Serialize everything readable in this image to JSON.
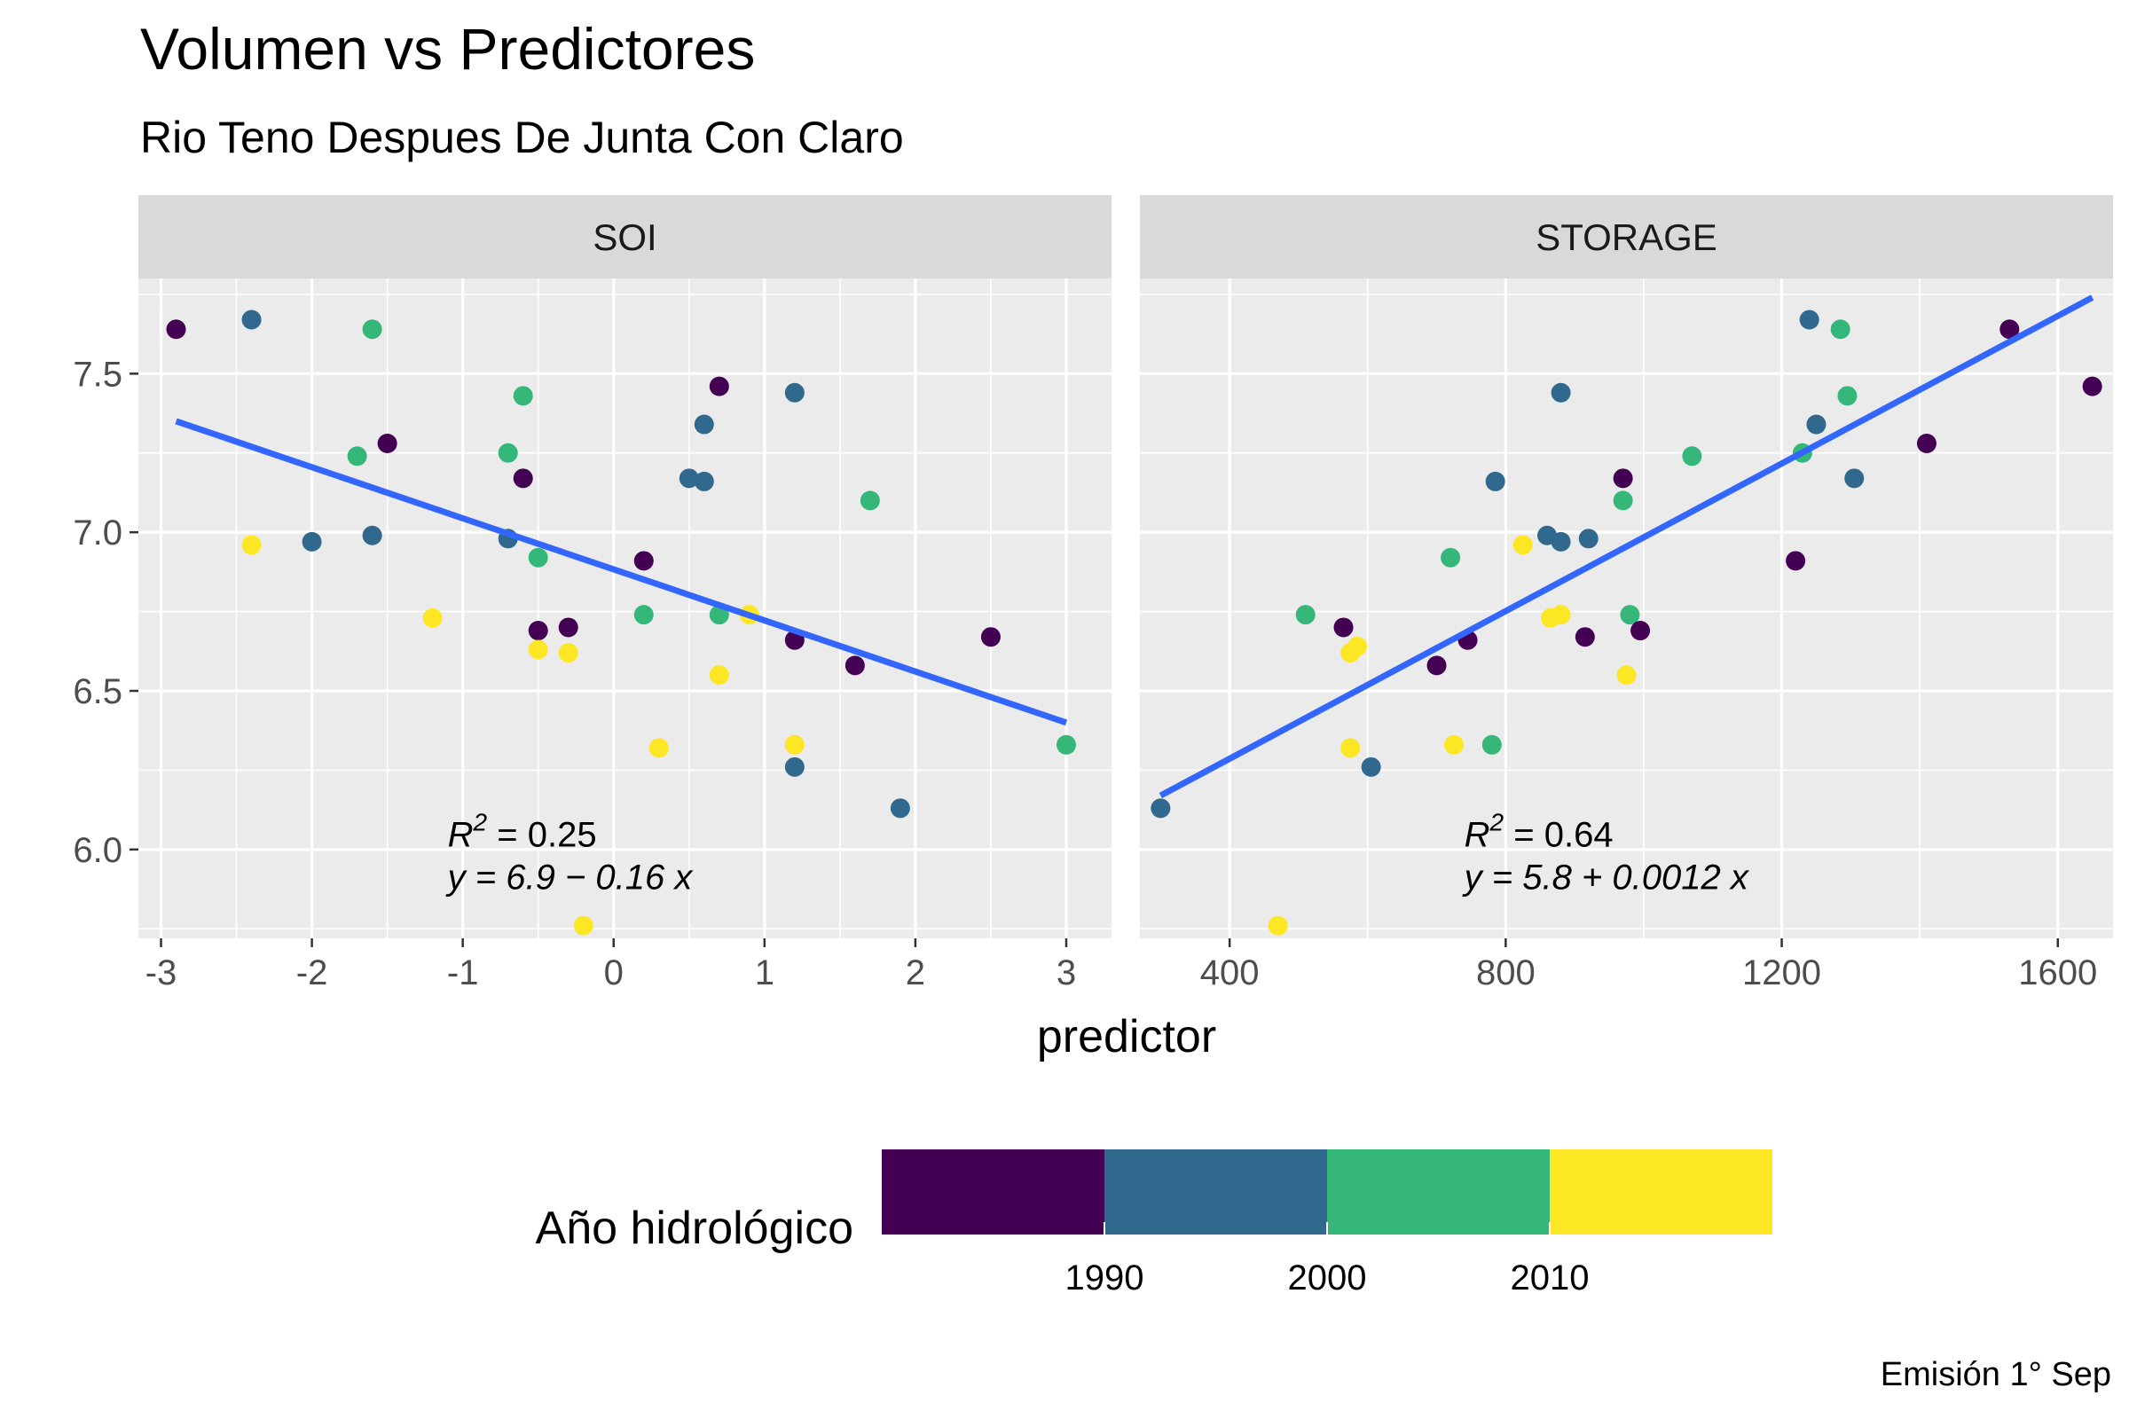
{
  "chart_data": {
    "type": "scatter",
    "title": "Volumen vs Predictores",
    "subtitle": "Rio Teno Despues De Junta Con Claro",
    "xlabel": "predictor",
    "ylabel": "",
    "caption": "Emisión 1° Sep",
    "grid": true,
    "y_ticks": [
      "6.0",
      "6.5",
      "7.0",
      "7.5"
    ],
    "ylim": [
      5.72,
      7.8
    ],
    "trend_color": "#3366FF",
    "panels": [
      {
        "strip": "SOI",
        "xlim": [
          -3.15,
          3.3
        ],
        "x_ticks": [
          "-3",
          "-2",
          "-1",
          "0",
          "1",
          "2",
          "3"
        ],
        "x_tick_values": [
          -3,
          -2,
          -1,
          0,
          1,
          2,
          3
        ],
        "trend": {
          "x": [
            -2.9,
            3.0
          ],
          "y": [
            7.35,
            6.4
          ]
        },
        "r2_prefix": "R",
        "r2_sup": "2",
        "r2_text": " = 0.25",
        "eq_text": "y = 6.9 − 0.16 x",
        "annot_at": [
          -1.1,
          6.06
        ],
        "points": [
          {
            "x": -2.9,
            "y": 7.64,
            "year": 1985
          },
          {
            "x": -2.4,
            "y": 7.67,
            "year": 1994
          },
          {
            "x": -1.6,
            "y": 7.64,
            "year": 2003
          },
          {
            "x": -1.7,
            "y": 7.24,
            "year": 2004
          },
          {
            "x": -1.5,
            "y": 7.28,
            "year": 1987
          },
          {
            "x": -2.4,
            "y": 6.96,
            "year": 2012
          },
          {
            "x": -2.0,
            "y": 6.97,
            "year": 1995
          },
          {
            "x": -1.6,
            "y": 6.99,
            "year": 1993
          },
          {
            "x": -0.6,
            "y": 7.43,
            "year": 2002
          },
          {
            "x": -0.7,
            "y": 7.25,
            "year": 2005
          },
          {
            "x": -0.6,
            "y": 7.17,
            "year": 1986
          },
          {
            "x": -0.7,
            "y": 6.98,
            "year": 1996
          },
          {
            "x": -0.5,
            "y": 6.92,
            "year": 2001
          },
          {
            "x": -1.2,
            "y": 6.73,
            "year": 2013
          },
          {
            "x": -0.5,
            "y": 6.69,
            "year": 1988
          },
          {
            "x": -0.3,
            "y": 6.7,
            "year": 1989
          },
          {
            "x": -0.5,
            "y": 6.63,
            "year": 2014
          },
          {
            "x": -0.3,
            "y": 6.62,
            "year": 2011
          },
          {
            "x": 0.2,
            "y": 6.91,
            "year": 1988
          },
          {
            "x": 0.2,
            "y": 6.74,
            "year": 2003
          },
          {
            "x": 0.7,
            "y": 7.46,
            "year": 1986
          },
          {
            "x": 0.6,
            "y": 7.34,
            "year": 1996
          },
          {
            "x": 0.5,
            "y": 7.17,
            "year": 1995
          },
          {
            "x": 0.6,
            "y": 7.16,
            "year": 1994
          },
          {
            "x": 0.7,
            "y": 6.74,
            "year": 2004
          },
          {
            "x": 0.9,
            "y": 6.74,
            "year": 2012
          },
          {
            "x": 0.7,
            "y": 6.55,
            "year": 2013
          },
          {
            "x": 1.2,
            "y": 7.44,
            "year": 1995
          },
          {
            "x": 1.7,
            "y": 7.1,
            "year": 2005
          },
          {
            "x": 1.2,
            "y": 6.66,
            "year": 1987
          },
          {
            "x": 1.6,
            "y": 6.58,
            "year": 1985
          },
          {
            "x": 2.5,
            "y": 6.67,
            "year": 1988
          },
          {
            "x": 1.2,
            "y": 6.33,
            "year": 2014
          },
          {
            "x": 0.3,
            "y": 6.32,
            "year": 2011
          },
          {
            "x": 1.2,
            "y": 6.26,
            "year": 1994
          },
          {
            "x": 1.9,
            "y": 6.13,
            "year": 1996
          },
          {
            "x": 3.0,
            "y": 6.33,
            "year": 2004
          },
          {
            "x": -0.2,
            "y": 5.76,
            "year": 2015
          }
        ]
      },
      {
        "strip": "STORAGE",
        "xlim": [
          270,
          1680
        ],
        "x_ticks": [
          "400",
          "800",
          "1200",
          "1600"
        ],
        "x_tick_values": [
          400,
          800,
          1200,
          1600
        ],
        "trend": {
          "x": [
            300,
            1650
          ],
          "y": [
            6.17,
            7.74
          ]
        },
        "r2_prefix": "R",
        "r2_sup": "2",
        "r2_text": " = 0.64",
        "eq_text": "y = 5.8 + 0.0012 x",
        "annot_at": [
          740,
          6.06
        ],
        "points": [
          {
            "x": 300,
            "y": 6.13,
            "year": 1996
          },
          {
            "x": 470,
            "y": 5.76,
            "year": 2015
          },
          {
            "x": 510,
            "y": 6.74,
            "year": 2004
          },
          {
            "x": 565,
            "y": 6.7,
            "year": 1988
          },
          {
            "x": 575,
            "y": 6.62,
            "year": 2011
          },
          {
            "x": 585,
            "y": 6.64,
            "year": 2014
          },
          {
            "x": 575,
            "y": 6.32,
            "year": 2013
          },
          {
            "x": 605,
            "y": 6.26,
            "year": 1994
          },
          {
            "x": 700,
            "y": 6.58,
            "year": 1985
          },
          {
            "x": 720,
            "y": 6.92,
            "year": 2001
          },
          {
            "x": 745,
            "y": 6.66,
            "year": 1987
          },
          {
            "x": 725,
            "y": 6.33,
            "year": 2012
          },
          {
            "x": 780,
            "y": 6.33,
            "year": 2004
          },
          {
            "x": 785,
            "y": 7.16,
            "year": 1994
          },
          {
            "x": 825,
            "y": 6.96,
            "year": 2012
          },
          {
            "x": 860,
            "y": 6.99,
            "year": 1993
          },
          {
            "x": 880,
            "y": 6.97,
            "year": 1995
          },
          {
            "x": 865,
            "y": 6.73,
            "year": 2013
          },
          {
            "x": 880,
            "y": 6.74,
            "year": 2014
          },
          {
            "x": 880,
            "y": 7.44,
            "year": 1995
          },
          {
            "x": 920,
            "y": 6.98,
            "year": 1996
          },
          {
            "x": 915,
            "y": 6.67,
            "year": 1988
          },
          {
            "x": 970,
            "y": 7.17,
            "year": 1986
          },
          {
            "x": 970,
            "y": 7.1,
            "year": 2005
          },
          {
            "x": 980,
            "y": 6.74,
            "year": 2003
          },
          {
            "x": 975,
            "y": 6.55,
            "year": 2013
          },
          {
            "x": 995,
            "y": 6.69,
            "year": 1989
          },
          {
            "x": 1070,
            "y": 7.24,
            "year": 2004
          },
          {
            "x": 1220,
            "y": 6.91,
            "year": 1988
          },
          {
            "x": 1230,
            "y": 7.25,
            "year": 2005
          },
          {
            "x": 1240,
            "y": 7.67,
            "year": 1994
          },
          {
            "x": 1250,
            "y": 7.34,
            "year": 1996
          },
          {
            "x": 1285,
            "y": 7.64,
            "year": 2003
          },
          {
            "x": 1295,
            "y": 7.43,
            "year": 2002
          },
          {
            "x": 1305,
            "y": 7.17,
            "year": 1995
          },
          {
            "x": 1410,
            "y": 7.28,
            "year": 1987
          },
          {
            "x": 1530,
            "y": 7.64,
            "year": 1985
          },
          {
            "x": 1650,
            "y": 7.46,
            "year": 1986
          }
        ]
      }
    ],
    "legend": {
      "title": "Año hidrológico",
      "position": "bottom",
      "bins": [
        {
          "color": "#440154"
        },
        {
          "color": "#31688E"
        },
        {
          "color": "#35B779"
        },
        {
          "color": "#FDE725"
        }
      ],
      "labels": [
        "1990",
        "2000",
        "2010"
      ]
    }
  }
}
